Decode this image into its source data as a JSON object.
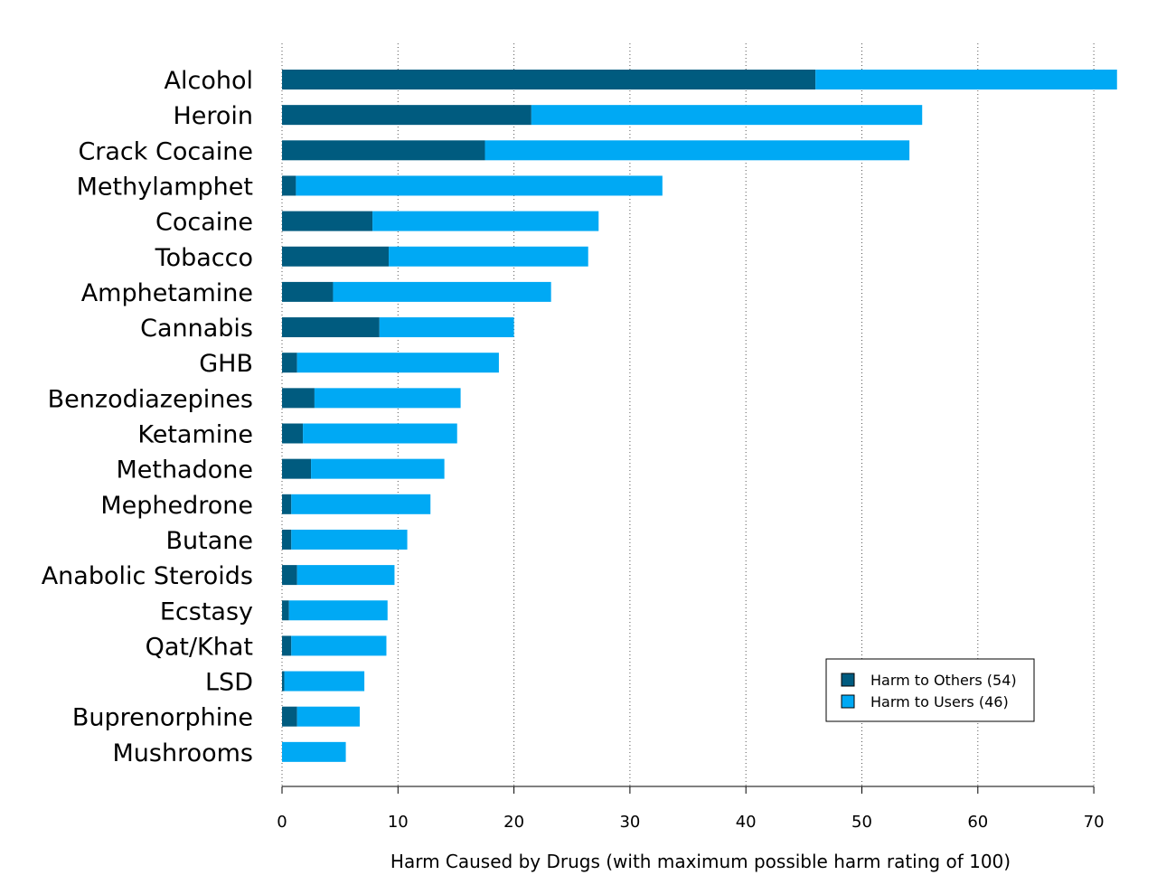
{
  "chart_data": {
    "type": "bar",
    "orientation": "horizontal",
    "stacked": true,
    "categories": [
      "Alcohol",
      "Heroin",
      "Crack Cocaine",
      "Methylamphet",
      "Cocaine",
      "Tobacco",
      "Amphetamine",
      "Cannabis",
      "GHB",
      "Benzodiazepines",
      "Ketamine",
      "Methadone",
      "Mephedrone",
      "Butane",
      "Anabolic Steroids",
      "Ecstasy",
      "Qat/Khat",
      "LSD",
      "Buprenorphine",
      "Mushrooms"
    ],
    "series": [
      {
        "name": "Harm to Others (54)",
        "color": "#005b7f",
        "values": [
          46,
          21.5,
          17.5,
          1.2,
          7.8,
          9.2,
          4.4,
          8.4,
          1.3,
          2.8,
          1.8,
          2.5,
          0.8,
          0.8,
          1.3,
          0.6,
          0.8,
          0.2,
          1.3,
          0
        ]
      },
      {
        "name": "Harm to Users (46)",
        "color": "#00a9f4",
        "values": [
          26,
          33.7,
          36.6,
          31.6,
          19.5,
          17.2,
          18.8,
          11.6,
          17.4,
          12.6,
          13.3,
          11.5,
          12,
          10,
          8.4,
          8.5,
          8.2,
          6.9,
          5.4,
          5.5
        ]
      }
    ],
    "x_ticks": [
      0,
      10,
      20,
      30,
      40,
      50,
      60,
      70
    ],
    "xlim": [
      0,
      72
    ],
    "xlabel": "Harm Caused by Drugs (with maximum possible harm rating of 100)",
    "ylabel": "",
    "title": "",
    "grid": "vertical dotted",
    "legend_position": "bottom-right"
  }
}
